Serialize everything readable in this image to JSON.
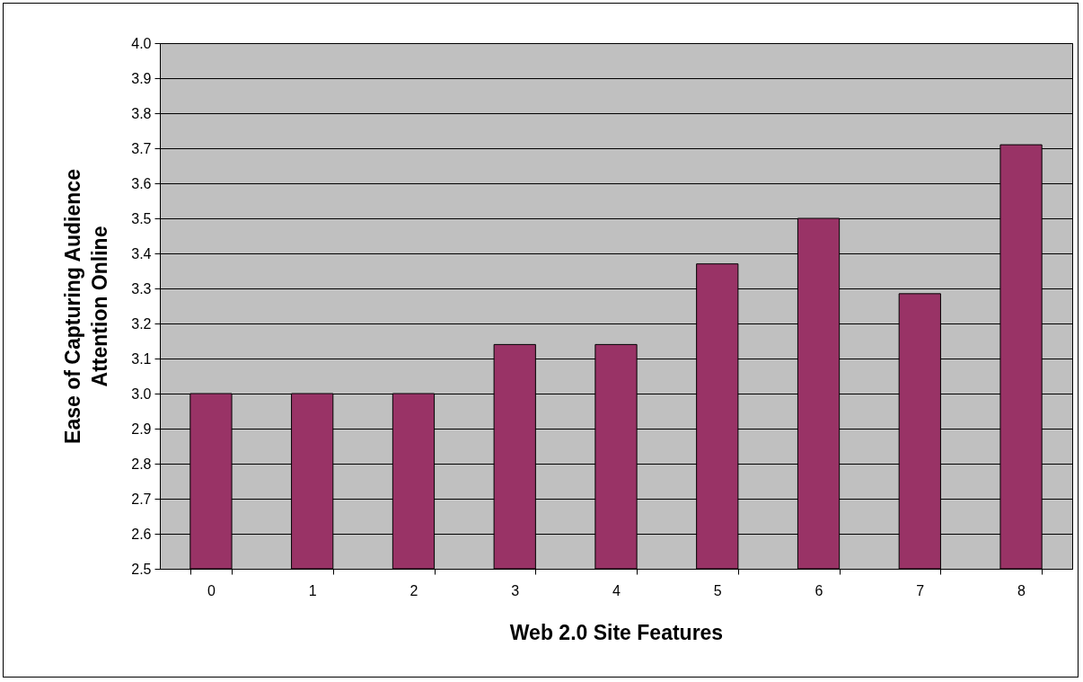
{
  "chart_data": {
    "type": "bar",
    "xlabel": "Web 2.0 Site Features",
    "ylabel": "Ease of Capturing Audience\nAttention Online",
    "categories": [
      "0",
      "1",
      "2",
      "3",
      "4",
      "5",
      "6",
      "7",
      "8"
    ],
    "values": [
      3.0,
      3.0,
      3.0,
      3.14,
      3.14,
      3.37,
      3.5,
      3.285,
      3.71
    ],
    "color": "#993366",
    "ylim": [
      2.5,
      4.0
    ],
    "yticks": [
      {
        "value": 2.5,
        "label": "2.5"
      },
      {
        "value": 2.6,
        "label": "2.6"
      },
      {
        "value": 2.7,
        "label": "2.7"
      },
      {
        "value": 2.8,
        "label": "2.8"
      },
      {
        "value": 2.9,
        "label": "2.9"
      },
      {
        "value": 3.0,
        "label": "3.0"
      },
      {
        "value": 3.1,
        "label": "3.1"
      },
      {
        "value": 3.2,
        "label": "3.2"
      },
      {
        "value": 3.3,
        "label": "3.3"
      },
      {
        "value": 3.4,
        "label": "3.4"
      },
      {
        "value": 3.5,
        "label": "3.5"
      },
      {
        "value": 3.6,
        "label": "3.6"
      },
      {
        "value": 3.7,
        "label": "3.7"
      },
      {
        "value": 3.8,
        "label": "3.8"
      },
      {
        "value": 3.9,
        "label": "3.9"
      },
      {
        "value": 4.0,
        "label": "4.0"
      }
    ],
    "grid": "y"
  }
}
